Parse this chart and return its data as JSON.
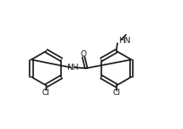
{
  "bg_color": "#ffffff",
  "line_color": "#1a1a1a",
  "line_width": 1.2,
  "font_size": 6.5,
  "figsize": [
    2.04,
    1.44
  ],
  "dpi": 100,
  "xlim": [
    0.0,
    1.0
  ],
  "ylim": [
    0.1,
    0.95
  ]
}
